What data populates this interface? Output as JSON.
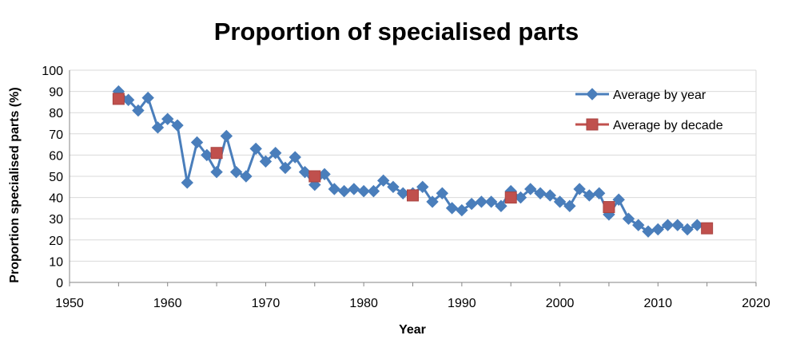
{
  "chart_data": {
    "type": "line",
    "title": "Proportion of specialised parts",
    "xlabel": "Year",
    "ylabel": "Proportion specialised parts (%)",
    "xlim": [
      1950,
      2020
    ],
    "ylim": [
      0,
      100
    ],
    "x_ticks": [
      "1950",
      "1960",
      "1970",
      "1980",
      "1990",
      "2000",
      "2010",
      "2020"
    ],
    "y_ticks": [
      "0",
      "10",
      "20",
      "30",
      "40",
      "50",
      "60",
      "70",
      "80",
      "90",
      "100"
    ],
    "grid": true,
    "legend_position": "top-right",
    "series": [
      {
        "name": "Average by year",
        "color": "#4a7ebb",
        "marker": "diamond",
        "x": [
          1955,
          1956,
          1957,
          1958,
          1959,
          1960,
          1961,
          1962,
          1963,
          1964,
          1965,
          1966,
          1967,
          1968,
          1969,
          1970,
          1971,
          1972,
          1973,
          1974,
          1975,
          1976,
          1977,
          1978,
          1979,
          1980,
          1981,
          1982,
          1983,
          1984,
          1985,
          1986,
          1987,
          1988,
          1989,
          1990,
          1991,
          1992,
          1993,
          1994,
          1995,
          1996,
          1997,
          1998,
          1999,
          2000,
          2001,
          2002,
          2003,
          2004,
          2005,
          2006,
          2007,
          2008,
          2009,
          2010,
          2011,
          2012,
          2013,
          2014
        ],
        "y": [
          90,
          86,
          81,
          87,
          73,
          77,
          74,
          47,
          66,
          60,
          52,
          69,
          52,
          50,
          63,
          57,
          61,
          54,
          59,
          52,
          46,
          51,
          44,
          43,
          44,
          43,
          43,
          48,
          45,
          42,
          42,
          45,
          38,
          42,
          35,
          34,
          37,
          38,
          38,
          36,
          43,
          40,
          44,
          42,
          41,
          38,
          36,
          44,
          41,
          42,
          32,
          39,
          30,
          27,
          24,
          25,
          27,
          27,
          25,
          27
        ]
      },
      {
        "name": "Average by decade",
        "color": "#c0504d",
        "marker": "square",
        "x": [
          1955,
          1965,
          1975,
          1985,
          1995,
          2005,
          2015
        ],
        "y": [
          86.5,
          61,
          50,
          41,
          40,
          35.5,
          25.5
        ]
      }
    ]
  }
}
